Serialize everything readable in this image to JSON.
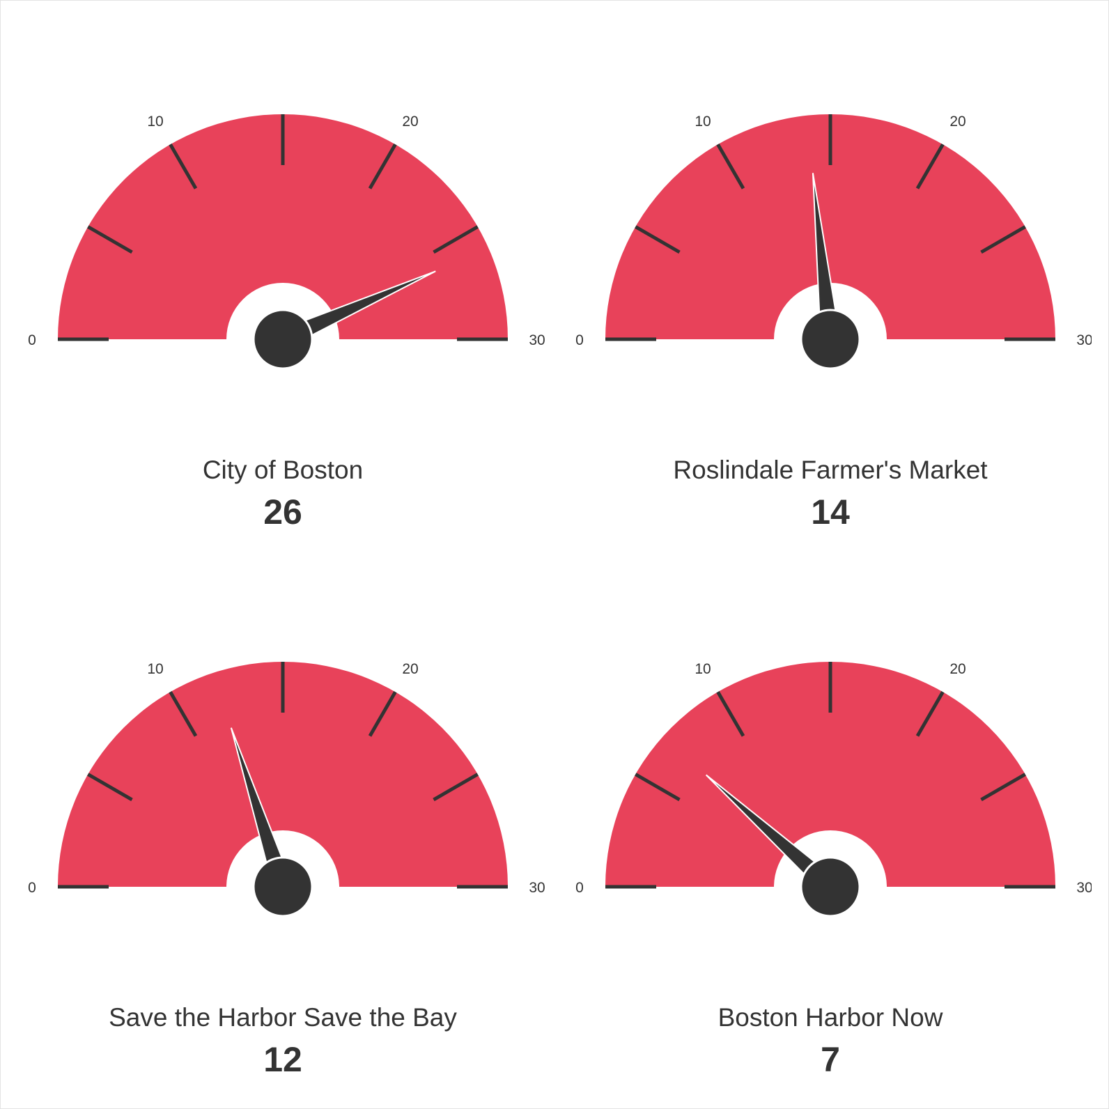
{
  "colors": {
    "band": "#e8425a",
    "needle": "#333333",
    "tick": "#333333",
    "hub_ring": "#ffffff"
  },
  "chart_data": [
    {
      "type": "gauge",
      "title": "City of Boston",
      "value": 26,
      "value_label": "26",
      "min": 0,
      "max": 30,
      "tick_labels": [
        "0",
        "10",
        "20",
        "30"
      ]
    },
    {
      "type": "gauge",
      "title": "Roslindale Farmer's Market",
      "value": 14,
      "value_label": "14",
      "min": 0,
      "max": 30,
      "tick_labels": [
        "0",
        "10",
        "20",
        "30"
      ]
    },
    {
      "type": "gauge",
      "title": "Save the Harbor Save the Bay",
      "value": 12,
      "value_label": "12",
      "min": 0,
      "max": 30,
      "tick_labels": [
        "0",
        "10",
        "20",
        "30"
      ]
    },
    {
      "type": "gauge",
      "title": "Boston Harbor Now",
      "value": 7,
      "value_label": "7",
      "min": 0,
      "max": 30,
      "tick_labels": [
        "0",
        "10",
        "20",
        "30"
      ]
    }
  ]
}
